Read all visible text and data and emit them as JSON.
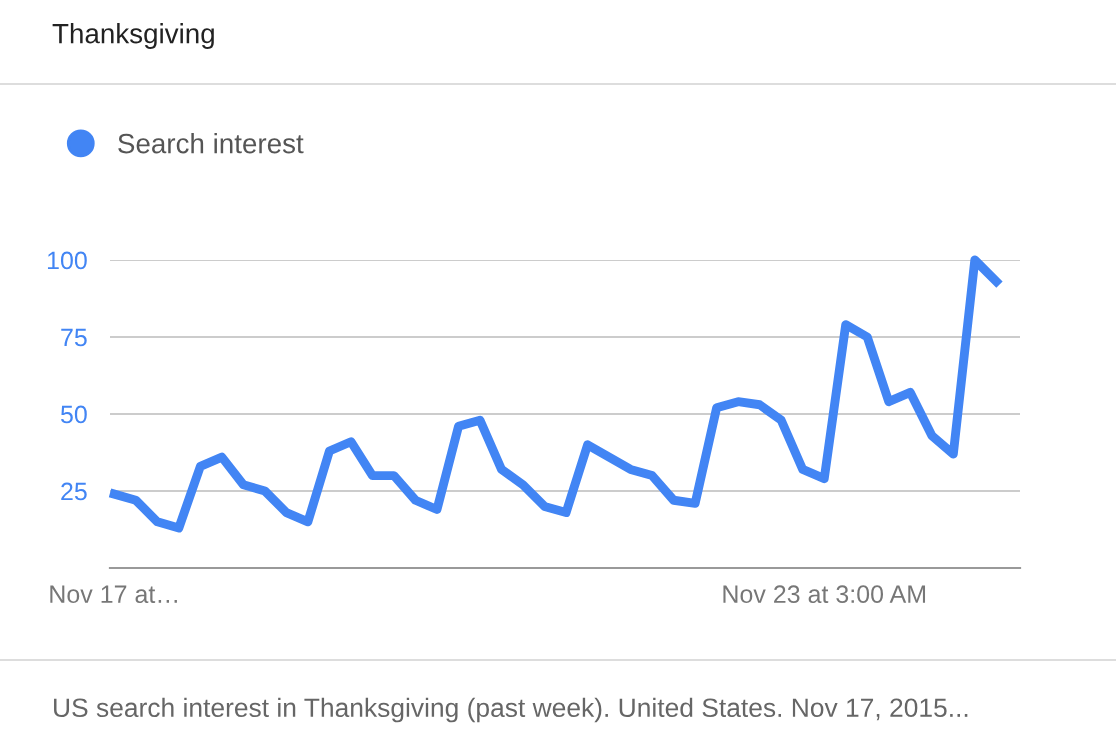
{
  "chart_data": {
    "type": "line",
    "title": "Thanksgiving",
    "categories": [
      "Nov 17 at…",
      null,
      null,
      null,
      null,
      null,
      null,
      null,
      null,
      null,
      null,
      null,
      null,
      null,
      null,
      null,
      null,
      null,
      null,
      null,
      null,
      null,
      null,
      null,
      null,
      null,
      null,
      null,
      null,
      null,
      null,
      null,
      null,
      "Nov 23 at 3:00 AM",
      null,
      null,
      null,
      null,
      null,
      null,
      null,
      null
    ],
    "series": [
      {
        "name": "Search interest",
        "color": "#4285f4",
        "values": [
          24,
          22,
          15,
          13,
          33,
          36,
          27,
          25,
          18,
          15,
          38,
          41,
          30,
          30,
          22,
          19,
          46,
          48,
          32,
          27,
          20,
          18,
          40,
          36,
          32,
          30,
          22,
          21,
          52,
          54,
          53,
          48,
          32,
          29,
          79,
          75,
          54,
          57,
          43,
          37,
          100,
          93
        ]
      }
    ],
    "ylim": [
      0,
      100
    ],
    "yticks": [
      25,
      50,
      75,
      100
    ],
    "grid": "y",
    "legend": "top left",
    "marker": "none",
    "line_style": "solid",
    "annotations": [
      "US search interest in Thanksgiving (past week). United States. Nov 17, 2015..."
    ]
  }
}
